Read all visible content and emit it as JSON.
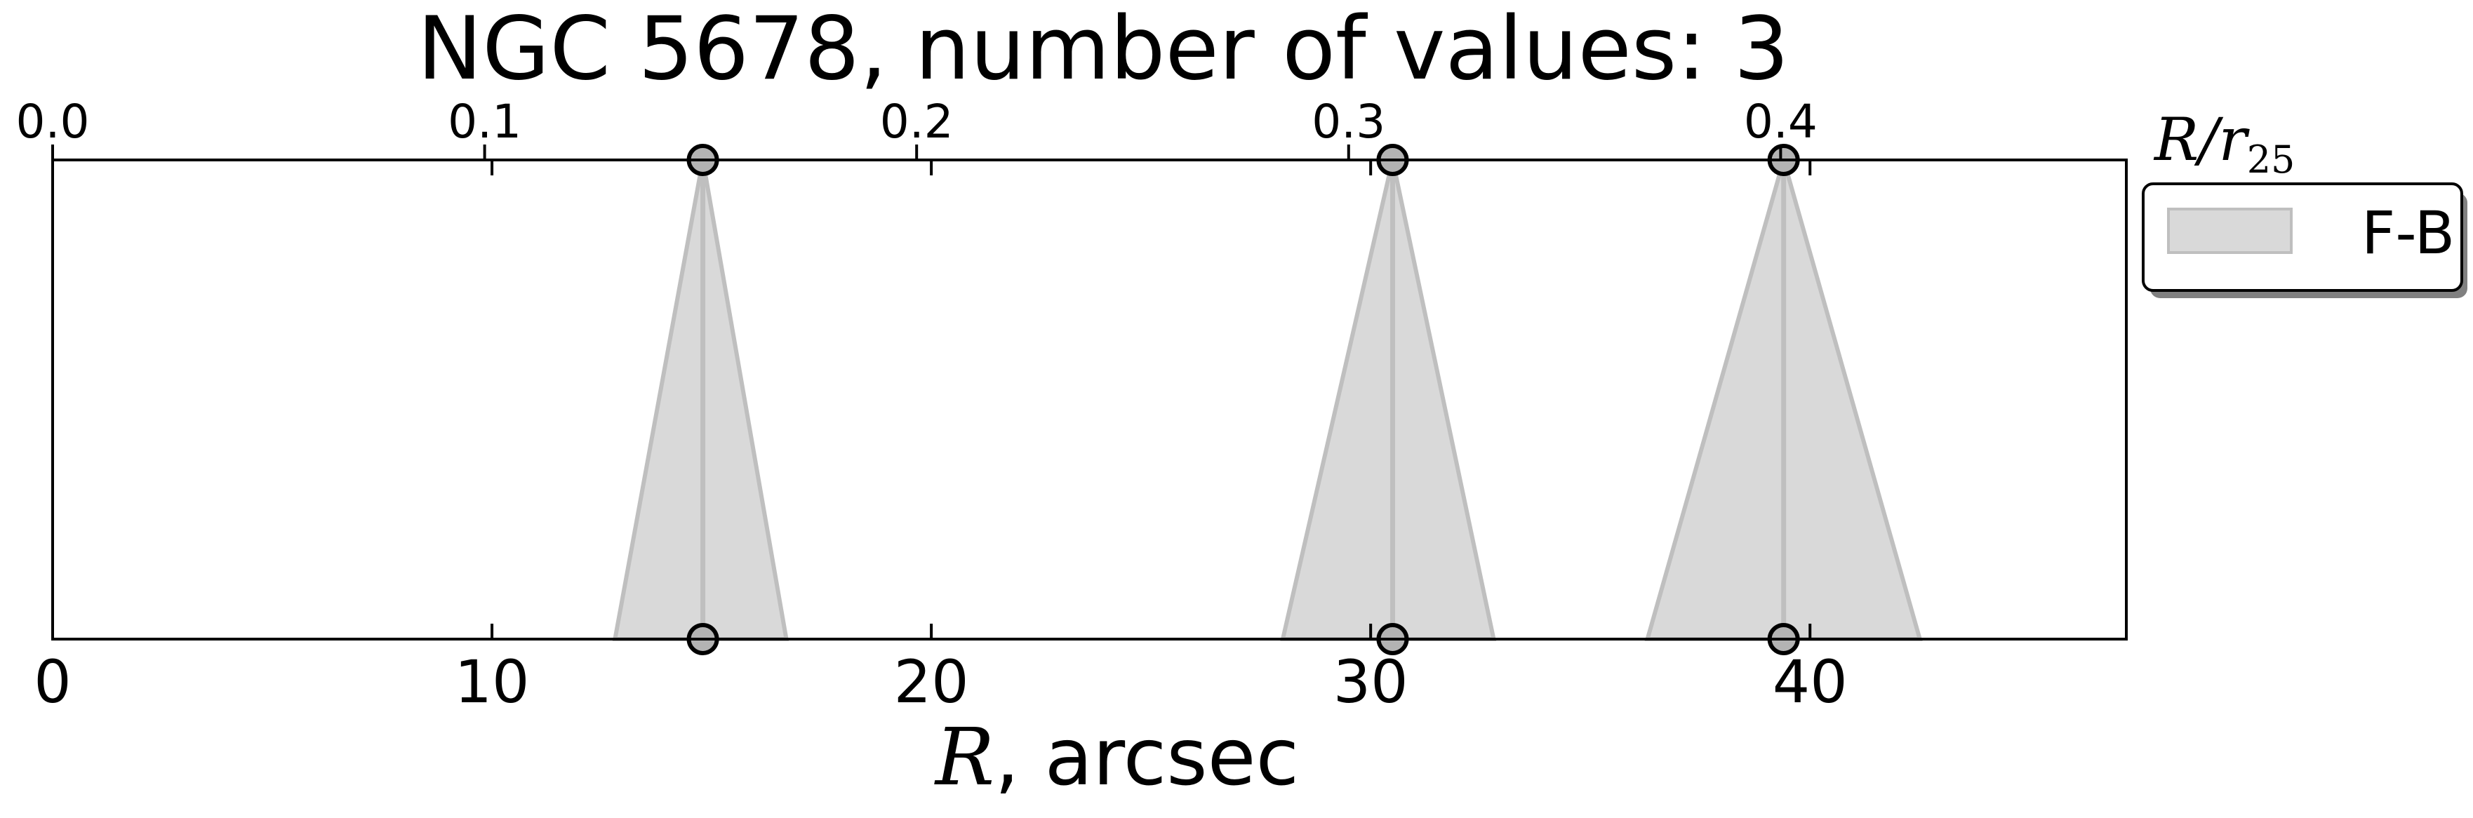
{
  "chart_data": {
    "type": "area",
    "title": "NGC 5678, number of values: 3",
    "xlabel_symbol": "R",
    "xlabel_suffix": ", arcsec",
    "xlim": [
      0,
      47.2
    ],
    "xticks": [
      0,
      10,
      20,
      30,
      40
    ],
    "secondary_axis": {
      "label_base": "R/r",
      "label_subscript": "25",
      "ticks": [
        0.0,
        0.1,
        0.2,
        0.3,
        0.4
      ],
      "scale_factor": 0.01017
    },
    "legend": {
      "placement": "right-outside-top",
      "entries": [
        "F-B"
      ]
    },
    "series": [
      {
        "name": "F-B",
        "color": "#d9d9d9",
        "edge_color": "#bfbfbf",
        "points": [
          {
            "x": 14.8,
            "x_low": 12.8,
            "x_high": 16.7
          },
          {
            "x": 30.5,
            "x_low": 28.0,
            "x_high": 32.8
          },
          {
            "x": 39.4,
            "x_low": 36.3,
            "x_high": 42.5
          }
        ]
      }
    ],
    "grid": false
  }
}
